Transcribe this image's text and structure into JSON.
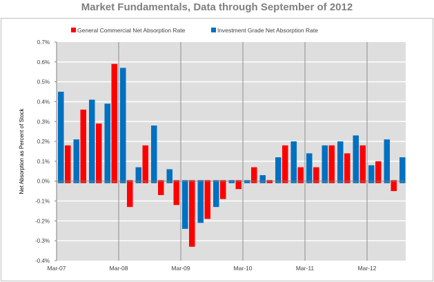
{
  "chart_data": {
    "type": "bar",
    "title": "Market Fundamentals, Data through September of 2012",
    "xlabel": "",
    "ylabel": "Net Absorption as Percent of Stock",
    "ylim": [
      -0.4,
      0.7
    ],
    "yticks": [
      "-0.4%",
      "-0.3%",
      "-0.2%",
      "-0.1%",
      "0.0%",
      "0.1%",
      "0.2%",
      "0.3%",
      "0.4%",
      "0.5%",
      "0.6%",
      "0.7%"
    ],
    "xtick_labels": [
      "Mar-07",
      "Mar-08",
      "Mar-09",
      "Mar-10",
      "Mar-11",
      "Mar-12"
    ],
    "categories": [
      "Mar-07",
      "Jun-07",
      "Sep-07",
      "Dec-07",
      "Mar-08",
      "Jun-08",
      "Sep-08",
      "Dec-08",
      "Mar-09",
      "Jun-09",
      "Sep-09",
      "Dec-09",
      "Mar-10",
      "Jun-10",
      "Sep-10",
      "Dec-10",
      "Mar-11",
      "Jun-11",
      "Sep-11",
      "Dec-11",
      "Mar-12",
      "Jun-12",
      "Sep-12"
    ],
    "series": [
      {
        "name": "General Commercial Net Absorption Rate",
        "color": "#ff0000",
        "values": [
          0.07,
          0.18,
          0.36,
          0.29,
          0.59,
          -0.13,
          0.18,
          -0.07,
          -0.12,
          -0.33,
          -0.19,
          -0.09,
          -0.04,
          0.07,
          -0.01,
          0.18,
          0.07,
          0.07,
          0.18,
          0.14,
          0.18,
          0.1,
          -0.05
        ]
      },
      {
        "name": "Investment Grade Net Absorption Rate",
        "color": "#0070c0",
        "values": [
          0.45,
          0.21,
          0.41,
          0.39,
          0.57,
          0.07,
          0.28,
          0.06,
          -0.24,
          -0.21,
          -0.13,
          -0.01,
          -0.01,
          0.03,
          0.12,
          0.2,
          0.14,
          0.18,
          0.2,
          0.23,
          0.08,
          0.21,
          0.12
        ]
      }
    ],
    "grid": true,
    "legend": "top"
  }
}
